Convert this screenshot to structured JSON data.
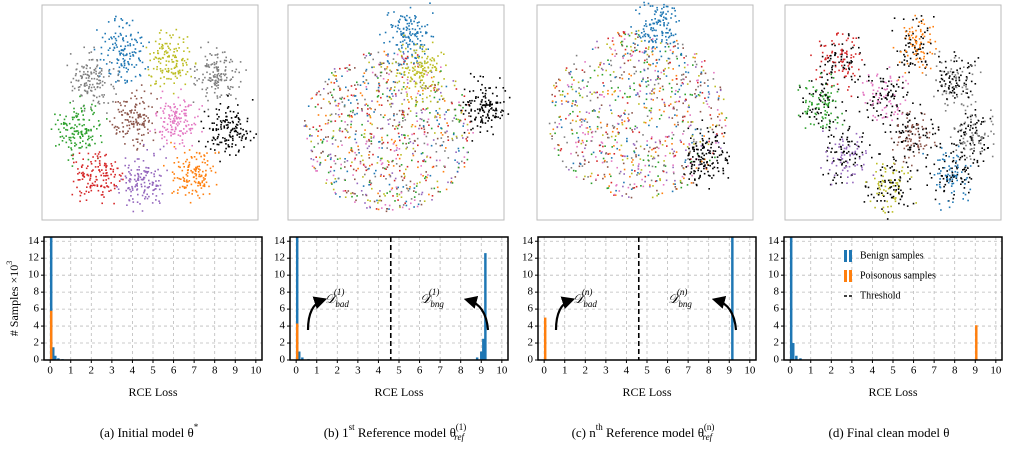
{
  "chart_data": [
    {
      "type": "histogram",
      "xlabel": "RCE Loss",
      "ylabel": {
        "text": "# Samples ×10",
        "sup": "3"
      },
      "xlim": [
        -0.3,
        10.3
      ],
      "ylim": [
        0,
        14.5
      ],
      "xticks": [
        0,
        1,
        2,
        3,
        4,
        5,
        6,
        7,
        8,
        9,
        10
      ],
      "yticks": [
        0,
        2,
        4,
        6,
        8,
        10,
        12,
        14
      ],
      "grid": true,
      "bin_width": 0.1,
      "series": [
        {
          "color": "#1f77b4",
          "x": [
            0.05,
            0.15,
            0.25,
            0.4,
            0.6
          ],
          "values": [
            14.5,
            1.5,
            0.5,
            0.2,
            0.1
          ]
        },
        {
          "color": "#ff7f0e",
          "x": [
            0.05
          ],
          "values": [
            5.8
          ]
        }
      ],
      "caption": [
        {
          "text": "(a) Initial model θ",
          "style": "normal"
        },
        {
          "text": "*",
          "style": "sup"
        }
      ]
    },
    {
      "type": "histogram",
      "xlabel": "RCE Loss",
      "xlim": [
        -0.3,
        10.3
      ],
      "ylim": [
        0,
        14.5
      ],
      "xticks": [
        0,
        1,
        2,
        3,
        4,
        5,
        6,
        7,
        8,
        9,
        10
      ],
      "yticks": [
        0,
        2,
        4,
        6,
        8,
        10,
        12,
        14
      ],
      "grid": true,
      "bin_width": 0.1,
      "series": [
        {
          "color": "#1f77b4",
          "x": [
            0.05,
            0.15,
            0.3,
            0.6,
            8.8,
            9.0,
            9.1,
            9.2
          ],
          "values": [
            14.5,
            1.0,
            0.3,
            0.1,
            0.3,
            1.0,
            2.5,
            12.6
          ]
        },
        {
          "color": "#ff7f0e",
          "x": [
            0.05
          ],
          "values": [
            4.3
          ]
        }
      ],
      "threshold": 4.6,
      "annotations": [
        {
          "symbol": "𝒟",
          "sub": "bad",
          "sup": "(1)"
        },
        {
          "symbol": "𝒟",
          "sub": "bng",
          "sup": "(1)"
        }
      ],
      "caption": [
        {
          "text": "(b) 1",
          "style": "normal"
        },
        {
          "text": "st",
          "style": "sup"
        },
        {
          "text": " Reference model θ",
          "style": "normal"
        },
        {
          "text": "(1)",
          "style": "sup"
        },
        {
          "text": "ref",
          "style": "sub"
        }
      ]
    },
    {
      "type": "histogram",
      "xlabel": "RCE Loss",
      "xlim": [
        -0.3,
        10.3
      ],
      "ylim": [
        0,
        14.5
      ],
      "xticks": [
        0,
        1,
        2,
        3,
        4,
        5,
        6,
        7,
        8,
        9,
        10
      ],
      "yticks": [
        0,
        2,
        4,
        6,
        8,
        10,
        12,
        14
      ],
      "grid": true,
      "bin_width": 0.1,
      "series": [
        {
          "color": "#1f77b4",
          "x": [
            9.15
          ],
          "values": [
            14.5
          ]
        },
        {
          "color": "#ff7f0e",
          "x": [
            0.05
          ],
          "values": [
            5.0
          ]
        }
      ],
      "threshold": 4.6,
      "annotations": [
        {
          "symbol": "𝒟",
          "sub": "bad",
          "sup": "(n)"
        },
        {
          "symbol": "𝒟",
          "sub": "bng",
          "sup": "(n)"
        }
      ],
      "caption": [
        {
          "text": "(c) n",
          "style": "normal"
        },
        {
          "text": "th",
          "style": "sup"
        },
        {
          "text": " Reference model θ",
          "style": "normal"
        },
        {
          "text": "(n)",
          "style": "sup"
        },
        {
          "text": "ref",
          "style": "sub"
        }
      ]
    },
    {
      "type": "histogram",
      "xlabel": "RCE Loss",
      "xlim": [
        -0.3,
        10.3
      ],
      "ylim": [
        0,
        14.5
      ],
      "xticks": [
        0,
        1,
        2,
        3,
        4,
        5,
        6,
        7,
        8,
        9,
        10
      ],
      "yticks": [
        0,
        2,
        4,
        6,
        8,
        10,
        12,
        14
      ],
      "grid": true,
      "bin_width": 0.1,
      "series": [
        {
          "name": "Benign samples",
          "color": "#1f77b4",
          "x": [
            0.05,
            0.15,
            0.3,
            0.5
          ],
          "values": [
            14.5,
            2.0,
            0.5,
            0.2
          ]
        },
        {
          "name": "Poisonous samples",
          "color": "#ff7f0e",
          "x": [
            9.05
          ],
          "values": [
            4.1
          ]
        }
      ],
      "threshold_label": "Threshold",
      "caption": [
        {
          "text": "(d) Final clean model θ",
          "style": "normal"
        }
      ]
    }
  ]
}
